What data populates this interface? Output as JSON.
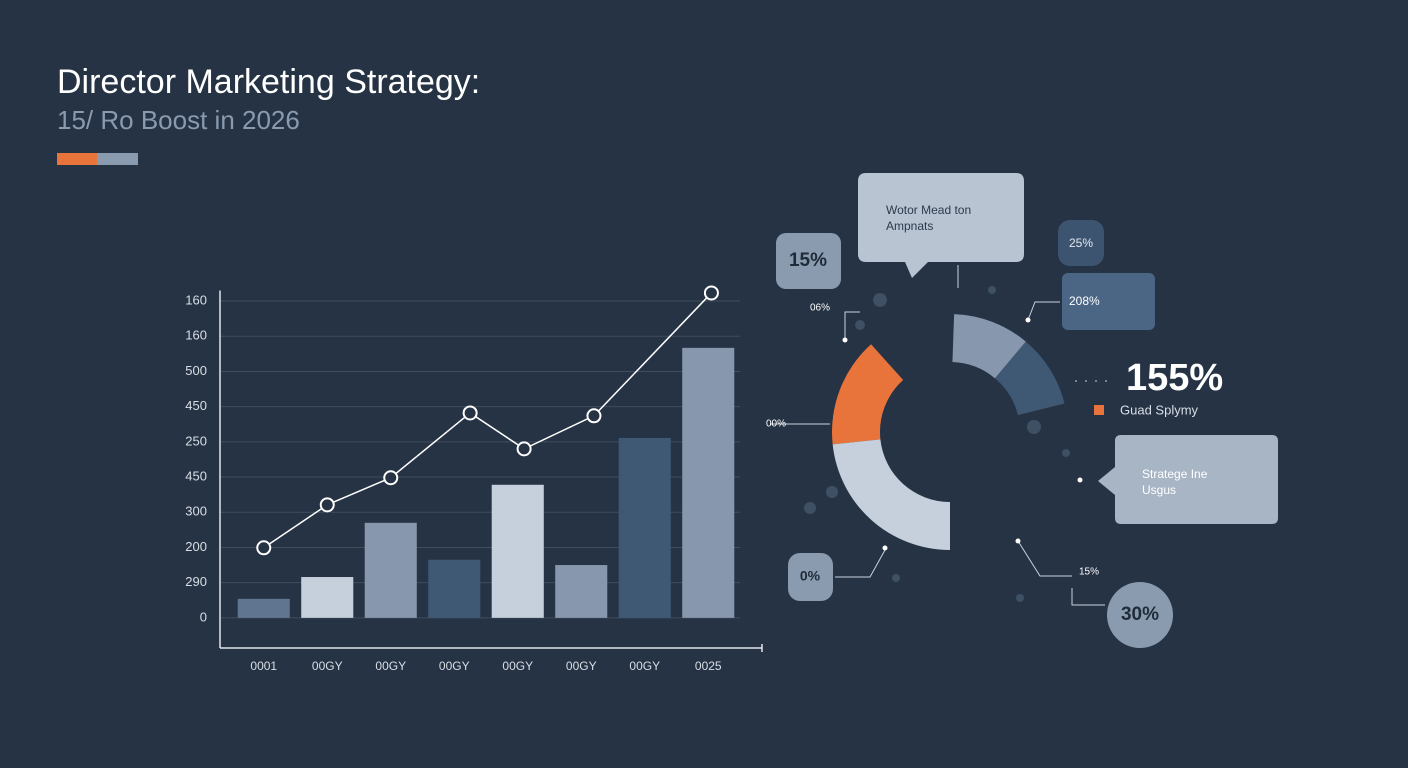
{
  "chart_data": {
    "type": "bar",
    "title": "Director Marketing Strategy:",
    "subtitle": "15/ Ro Boost in 2026",
    "categories": [
      "0001",
      "00GY",
      "00GY",
      "00GY",
      "00GY",
      "00GY",
      "00GY",
      "0025"
    ],
    "values": [
      0.54,
      1.16,
      2.7,
      1.65,
      3.78,
      1.5,
      5.11,
      7.67
    ],
    "colors": [
      "#5f7590",
      "#c5d0dc",
      "#8797ad",
      "#3f5874",
      "#c5d0dc",
      "#8797ad",
      "#3f5874",
      "#8797ad"
    ],
    "line": {
      "x": [
        0,
        1,
        2,
        3.25,
        4.1,
        5.2,
        7.05
      ],
      "values": [
        1.99,
        3.21,
        3.98,
        5.82,
        4.8,
        5.74,
        9.23
      ],
      "color": "#ffffff"
    },
    "ylim": [
      -0.8,
      9.3
    ],
    "yticks": [
      {
        "value": 0,
        "label": "0"
      },
      {
        "value": 1,
        "label": "290"
      },
      {
        "value": 2,
        "label": "200"
      },
      {
        "value": 3,
        "label": "300"
      },
      {
        "value": 4,
        "label": "450"
      },
      {
        "value": 5,
        "label": "250"
      },
      {
        "value": 6,
        "label": "450"
      },
      {
        "value": 7,
        "label": "500"
      },
      {
        "value": 8,
        "label": "160"
      },
      {
        "value": 9,
        "label": "160"
      }
    ],
    "grid": true,
    "annotations": [
      "Wotor Mead ton",
      "Ampnats",
      "15%",
      "25%",
      "208%",
      "06%",
      "155%",
      "Guad Splymy",
      "00%",
      "Stratege Ine",
      "Usgus",
      "0%",
      "15%",
      "30%"
    ]
  }
}
